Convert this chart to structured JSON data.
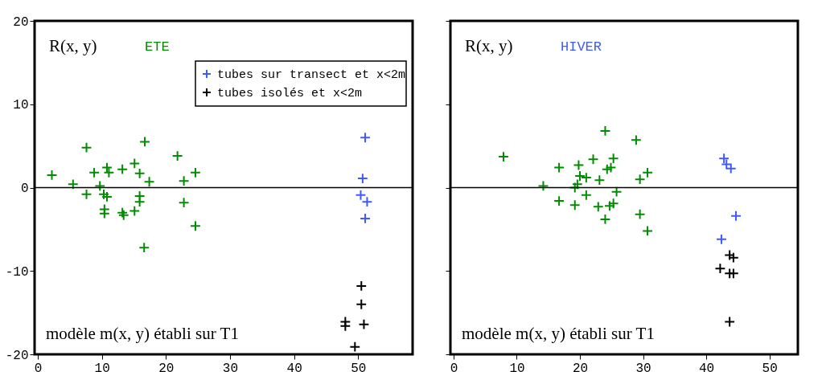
{
  "chart_data": [
    {
      "type": "scatter",
      "title": "R(x, y)",
      "subtitle": "ETE",
      "annotations": [
        "modèle m(x, y) établi sur T1"
      ],
      "xlim": [
        -0.5,
        58.5
      ],
      "ylim": [
        -20,
        20
      ],
      "xticks": [
        0,
        10,
        20,
        30,
        40,
        50
      ],
      "yticks": [
        -20,
        -10,
        0,
        10,
        20
      ],
      "grid": false,
      "legend": "top right",
      "marker": "cross",
      "ref_lines": [
        {
          "axis": "y",
          "value": 0,
          "color": "#000000"
        }
      ],
      "series": [
        {
          "color": "#008c00",
          "x": [
            2.2,
            7.6,
            5.5,
            7.6,
            8.8,
            9.7,
            10.8,
            11.1,
            10.3,
            10.8,
            10.4,
            10.4,
            13.2,
            15.1,
            15.9,
            16.7,
            17.4,
            15.9,
            15.9,
            15.1,
            13.2,
            13.4,
            16.6,
            21.8,
            22.8,
            24.6,
            22.8,
            24.6
          ],
          "values": [
            1.5,
            4.8,
            0.4,
            -0.8,
            1.8,
            0.2,
            2.4,
            1.8,
            -0.8,
            -1.1,
            -2.6,
            -3.1,
            2.2,
            2.9,
            1.7,
            5.5,
            0.7,
            -1.0,
            -1.7,
            -2.8,
            -3.0,
            -3.3,
            -7.2,
            3.8,
            0.8,
            1.8,
            -1.8,
            -4.6
          ]
        },
        {
          "name": "tubes sur transect et x<2m",
          "color": "#3c5aff",
          "x": [
            51.1,
            50.7,
            50.4,
            51.4,
            51.1
          ],
          "values": [
            6.0,
            1.1,
            -0.9,
            -1.7,
            -3.7
          ]
        },
        {
          "name": "tubes isolés et x<2m",
          "color": "#000000",
          "x": [
            50.5,
            50.5,
            48.0,
            48.0,
            50.9,
            49.5
          ],
          "values": [
            -11.8,
            -14.0,
            -16.1,
            -16.6,
            -16.4,
            -19.1
          ]
        }
      ]
    },
    {
      "type": "scatter",
      "title": "R(x, y)",
      "subtitle": "HIVER",
      "annotations": [
        "modèle m(x, y) établi sur T1"
      ],
      "xlim": [
        -0.5,
        54.5
      ],
      "ylim": [
        -20,
        20
      ],
      "xticks": [
        0,
        10,
        20,
        30,
        40,
        50
      ],
      "yticks": [
        -20,
        -10,
        0,
        10,
        20
      ],
      "tick_labels": "x",
      "grid": false,
      "marker": "cross",
      "ref_lines": [
        {
          "axis": "y",
          "value": 0,
          "color": "#000000"
        }
      ],
      "series": [
        {
          "color": "#008c00",
          "x": [
            7.9,
            14.2,
            16.7,
            16.7,
            19.2,
            19.8,
            20.0,
            21.0,
            19.6,
            19.2,
            21.0,
            22.1,
            23.1,
            22.9,
            24.0,
            24.0,
            24.3,
            24.9,
            25.3,
            25.8,
            24.7,
            25.3,
            28.9,
            29.5,
            30.7,
            29.5,
            30.7
          ],
          "values": [
            3.7,
            0.2,
            2.4,
            -1.6,
            -2.1,
            2.7,
            1.4,
            1.2,
            0.4,
            0,
            -0.9,
            3.4,
            0.9,
            -2.3,
            6.8,
            -3.8,
            2.2,
            2.4,
            3.5,
            -0.5,
            -2.2,
            -1.9,
            5.7,
            1.0,
            1.8,
            -3.2,
            -5.2
          ]
        },
        {
          "color": "#3c5aff",
          "x": [
            42.8,
            43.2,
            43.9,
            44.7,
            42.4
          ],
          "values": [
            3.5,
            2.8,
            2.3,
            -3.4,
            -6.2
          ]
        },
        {
          "color": "#000000",
          "x": [
            43.7,
            44.3,
            42.2,
            43.7,
            44.3,
            43.7
          ],
          "values": [
            -8.1,
            -8.4,
            -9.7,
            -10.3,
            -10.3,
            -16.1
          ]
        }
      ]
    }
  ]
}
